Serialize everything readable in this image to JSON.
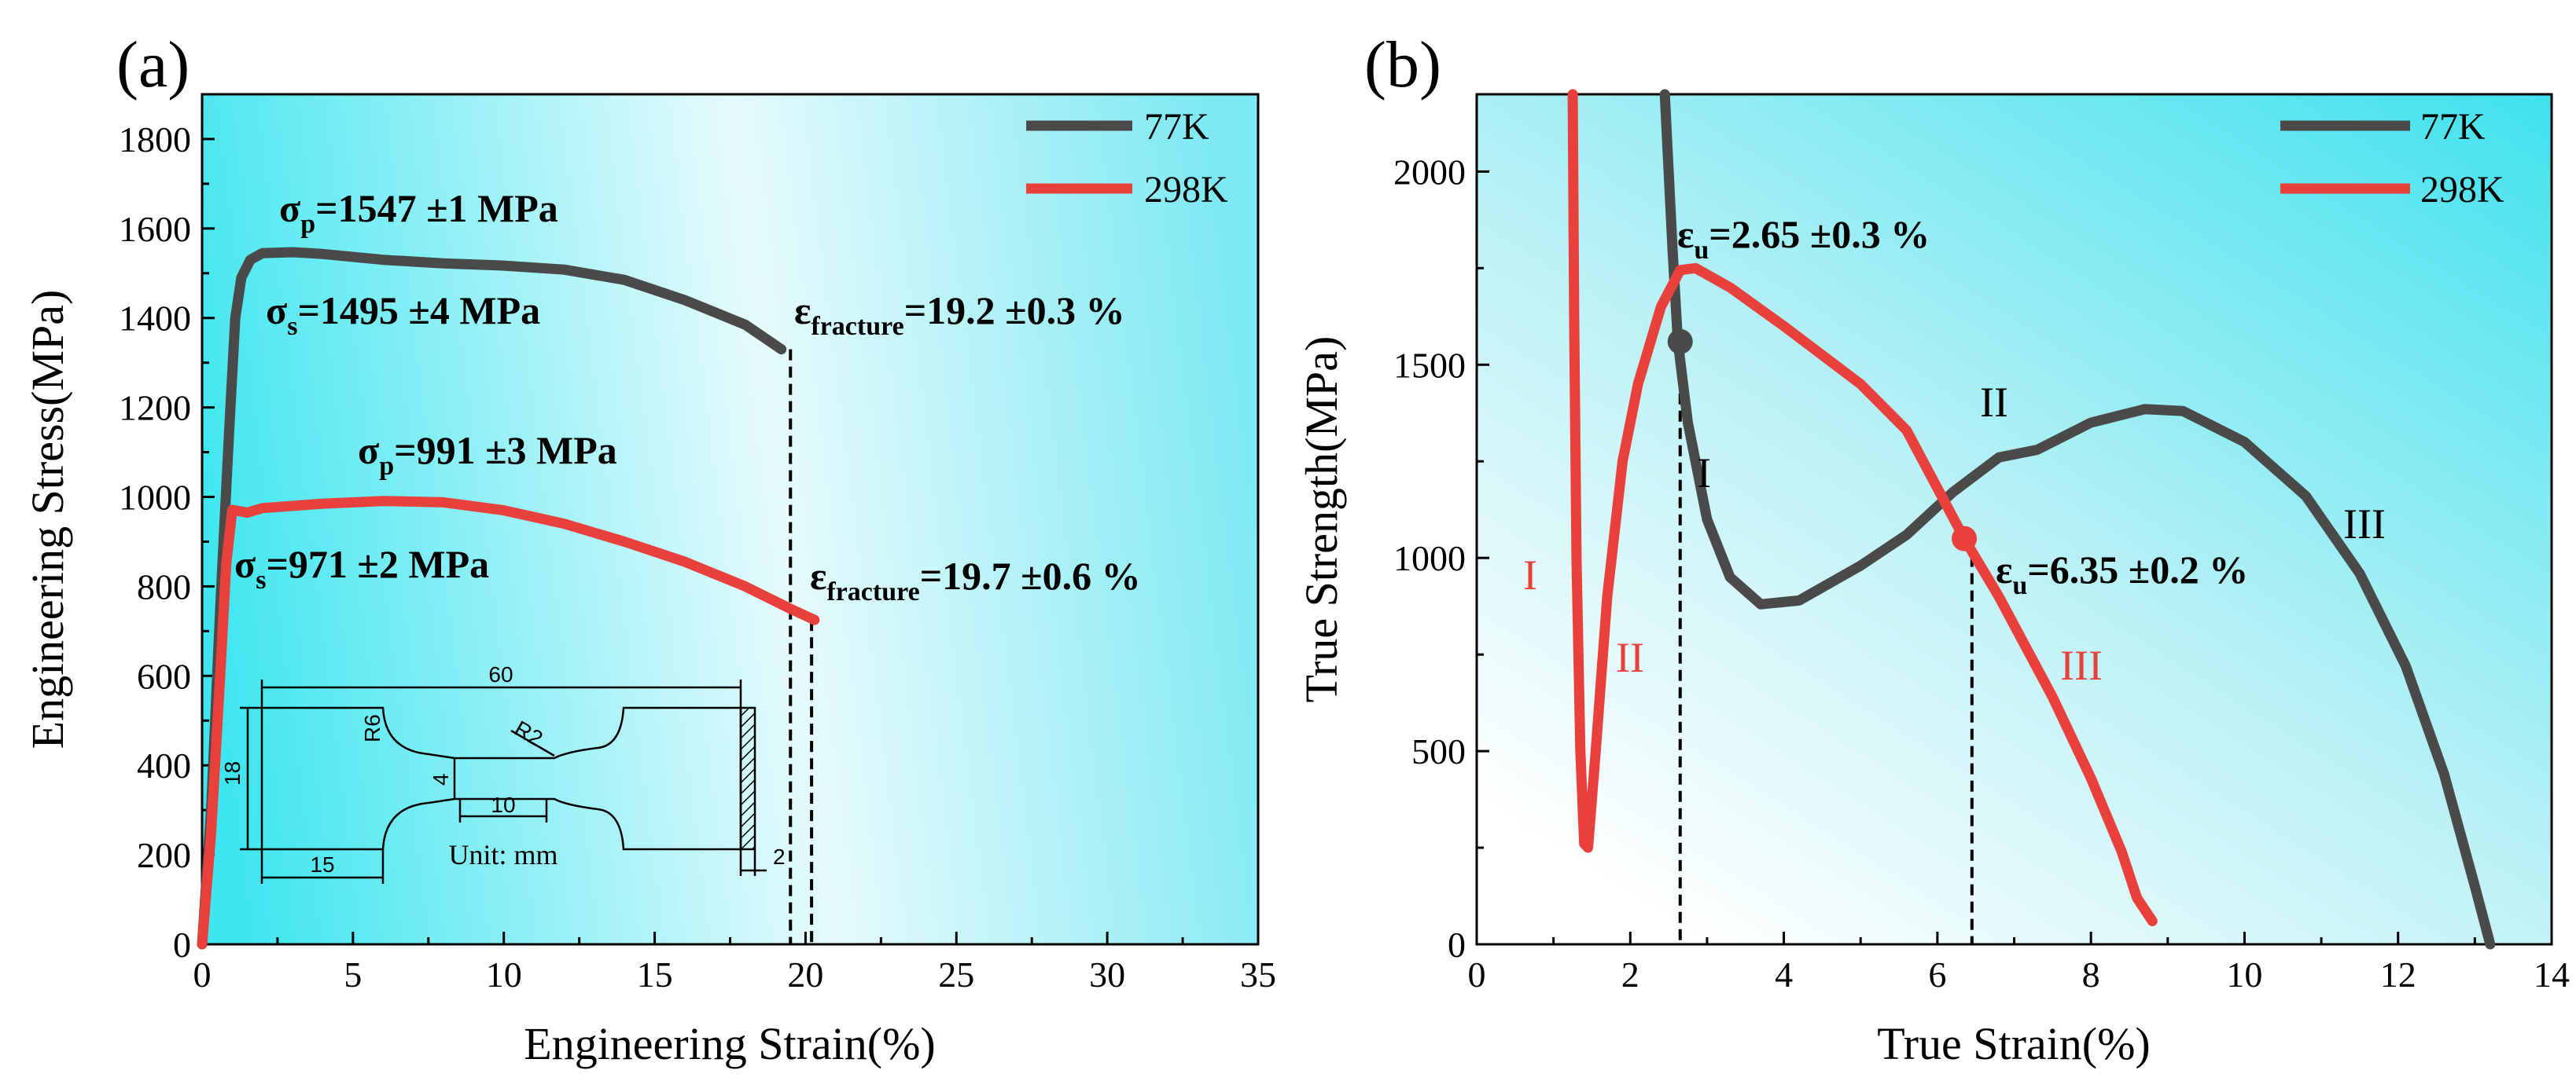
{
  "chart_data": [
    {
      "panel_label": "(a)",
      "type": "line",
      "xlabel": "Engineering Strain(%)",
      "ylabel": "Engineering Stress(MPa)",
      "xlim": [
        0,
        35
      ],
      "ylim": [
        0,
        1900
      ],
      "xticks": [
        "0",
        "5",
        "10",
        "15",
        "20",
        "25",
        "30",
        "35"
      ],
      "xtick_values": [
        0,
        5,
        10,
        15,
        20,
        25,
        30,
        35
      ],
      "yticks": [
        "0",
        "200",
        "400",
        "600",
        "800",
        "1000",
        "1200",
        "1400",
        "1600",
        "1800"
      ],
      "ytick_values": [
        0,
        200,
        400,
        600,
        800,
        1000,
        1200,
        1400,
        1600,
        1800
      ],
      "legend_position": "top-right",
      "series": [
        {
          "name": "77K",
          "color": "#4a4a4a",
          "points": [
            [
              0,
              0
            ],
            [
              0.3,
              300
            ],
            [
              0.6,
              750
            ],
            [
              0.9,
              1150
            ],
            [
              1.1,
              1400
            ],
            [
              1.3,
              1490
            ],
            [
              1.6,
              1530
            ],
            [
              2,
              1545
            ],
            [
              3,
              1547
            ],
            [
              4,
              1543
            ],
            [
              6,
              1530
            ],
            [
              8,
              1522
            ],
            [
              10,
              1517
            ],
            [
              12,
              1508
            ],
            [
              14,
              1485
            ],
            [
              16,
              1440
            ],
            [
              18,
              1385
            ],
            [
              19.2,
              1330
            ]
          ]
        },
        {
          "name": "298K",
          "color": "#e8413c",
          "points": [
            [
              0,
              0
            ],
            [
              0.3,
              250
            ],
            [
              0.6,
              600
            ],
            [
              0.8,
              850
            ],
            [
              1,
              971
            ],
            [
              1.5,
              965
            ],
            [
              2,
              975
            ],
            [
              4,
              985
            ],
            [
              6,
              991
            ],
            [
              8,
              988
            ],
            [
              10,
              970
            ],
            [
              12,
              940
            ],
            [
              14,
              900
            ],
            [
              16,
              855
            ],
            [
              18,
              800
            ],
            [
              19.5,
              750
            ],
            [
              20.3,
              725
            ]
          ]
        }
      ],
      "fracture_lines": [
        19.5,
        20.2
      ],
      "annotations": {
        "p77_main": "σ",
        "p77_sub": "p",
        "p77_rest": "=1547 ±1 MPa",
        "s77_main": "σ",
        "s77_sub": "s",
        "s77_rest": "=1495 ±4 MPa",
        "f77_main": "ε",
        "f77_sub": "fracture",
        "f77_rest": "=19.2 ±0.3 %",
        "p298_main": "σ",
        "p298_sub": "p",
        "p298_rest": "=991 ±3 MPa",
        "s298_main": "σ",
        "s298_sub": "s",
        "s298_rest": "=971 ±2 MPa",
        "f298_main": "ε",
        "f298_sub": "fracture",
        "f298_rest": "=19.7 ±0.6 %"
      },
      "inset": {
        "dim_total": "60",
        "dim_r6": "R6",
        "dim_r2": "R2",
        "dim_height": "18",
        "dim_gauge_w": "4",
        "dim_gauge_l": "10",
        "dim_grip": "15",
        "dim_hatch": "2",
        "unit": "Unit: mm"
      }
    },
    {
      "panel_label": "(b)",
      "type": "line",
      "xlabel": "True Strain(%)",
      "ylabel": "True Strength(MPa)",
      "xlim": [
        0,
        14
      ],
      "ylim": [
        0,
        2200
      ],
      "xticks": [
        "0",
        "2",
        "4",
        "6",
        "8",
        "10",
        "12",
        "14"
      ],
      "xtick_values": [
        0,
        2,
        4,
        6,
        8,
        10,
        12,
        14
      ],
      "yticks": [
        "0",
        "500",
        "1000",
        "1500",
        "2000"
      ],
      "ytick_values": [
        0,
        500,
        1000,
        1500,
        2000
      ],
      "legend_position": "top-right",
      "series": [
        {
          "name": "77K",
          "color": "#4a4a4a",
          "points": [
            [
              2.45,
              2200
            ],
            [
              2.5,
              2000
            ],
            [
              2.55,
              1800
            ],
            [
              2.62,
              1560
            ],
            [
              2.75,
              1350
            ],
            [
              3,
              1100
            ],
            [
              3.3,
              950
            ],
            [
              3.7,
              880
            ],
            [
              4.2,
              890
            ],
            [
              5,
              980
            ],
            [
              5.6,
              1060
            ],
            [
              6.2,
              1170
            ],
            [
              6.8,
              1260
            ],
            [
              7.3,
              1280
            ],
            [
              8,
              1350
            ],
            [
              8.7,
              1385
            ],
            [
              9.2,
              1380
            ],
            [
              10,
              1300
            ],
            [
              10.8,
              1160
            ],
            [
              11.5,
              960
            ],
            [
              12.1,
              720
            ],
            [
              12.6,
              440
            ],
            [
              13,
              150
            ],
            [
              13.2,
              0
            ]
          ]
        },
        {
          "name": "298K",
          "color": "#e8413c",
          "points": [
            [
              1.25,
              2200
            ],
            [
              1.27,
              1600
            ],
            [
              1.3,
              1000
            ],
            [
              1.35,
              500
            ],
            [
              1.4,
              260
            ],
            [
              1.45,
              250
            ],
            [
              1.55,
              500
            ],
            [
              1.7,
              900
            ],
            [
              1.9,
              1250
            ],
            [
              2.1,
              1450
            ],
            [
              2.4,
              1650
            ],
            [
              2.65,
              1745
            ],
            [
              2.85,
              1750
            ],
            [
              3.3,
              1700
            ],
            [
              4,
              1600
            ],
            [
              5,
              1450
            ],
            [
              5.6,
              1330
            ],
            [
              6.35,
              1050
            ],
            [
              6.8,
              900
            ],
            [
              7.5,
              640
            ],
            [
              8,
              430
            ],
            [
              8.4,
              240
            ],
            [
              8.6,
              120
            ],
            [
              8.8,
              60
            ]
          ]
        }
      ],
      "uniform_points": [
        [
          2.65,
          1560
        ],
        [
          6.35,
          1050
        ]
      ],
      "dashed_x": [
        2.65,
        6.45
      ],
      "stages_77K": [
        "I",
        "II",
        "III"
      ],
      "stages_298K": [
        "I",
        "II",
        "III"
      ],
      "annotations": {
        "u77_main": "ε",
        "u77_sub": "u",
        "u77_rest": "=2.65 ±0.3 %",
        "u298_main": "ε",
        "u298_sub": "u",
        "u298_rest": "=6.35 ±0.2 %"
      }
    }
  ]
}
